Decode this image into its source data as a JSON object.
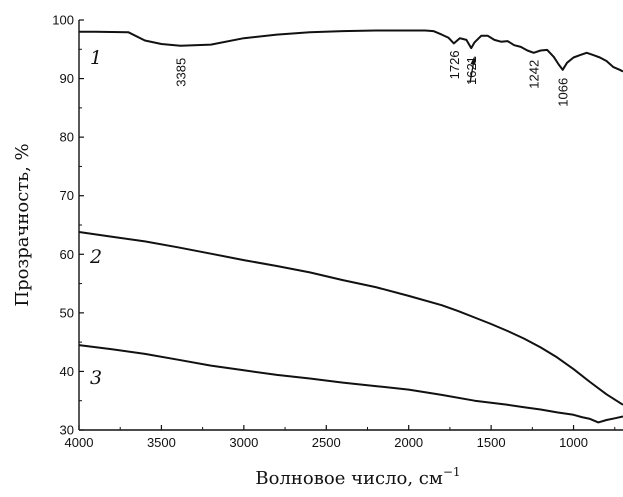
{
  "chart_data": {
    "type": "line",
    "title": "",
    "xlabel": "Волновое число, см",
    "xlabel_superscript": "−1",
    "ylabel": "Прозрачность, %",
    "xlim": [
      4000,
      700
    ],
    "ylim": [
      30,
      100
    ],
    "x_reversed": true,
    "grid": false,
    "xticks": [
      4000,
      3500,
      3000,
      2500,
      2000,
      1500,
      1000
    ],
    "yticks": [
      30,
      40,
      50,
      60,
      70,
      80,
      90,
      100
    ],
    "colors": {
      "line": "#111111"
    },
    "series": [
      {
        "name": "1",
        "x": [
          4000,
          3900,
          3700,
          3600,
          3500,
          3385,
          3200,
          3000,
          2800,
          2600,
          2400,
          2200,
          2000,
          1900,
          1850,
          1800,
          1760,
          1726,
          1690,
          1650,
          1621,
          1600,
          1560,
          1520,
          1480,
          1440,
          1400,
          1360,
          1320,
          1280,
          1242,
          1200,
          1160,
          1120,
          1090,
          1066,
          1040,
          1000,
          960,
          920,
          880,
          840,
          800,
          760,
          720,
          700
        ],
        "y": [
          98,
          98,
          97.9,
          96.5,
          95.9,
          95.6,
          95.8,
          96.9,
          97.5,
          97.9,
          98.1,
          98.2,
          98.2,
          98.2,
          98.1,
          97.5,
          97,
          96,
          96.9,
          96.6,
          95.2,
          96.2,
          97.3,
          97.3,
          96.6,
          96.3,
          96.4,
          95.7,
          95.4,
          94.8,
          94.4,
          94.8,
          94.9,
          93.7,
          92.4,
          91.5,
          92.7,
          93.6,
          94,
          94.4,
          94,
          93.6,
          93,
          92,
          91.5,
          91.2
        ]
      },
      {
        "name": "2",
        "x": [
          4000,
          3800,
          3600,
          3400,
          3200,
          3000,
          2800,
          2600,
          2400,
          2200,
          2000,
          1800,
          1700,
          1600,
          1500,
          1400,
          1300,
          1200,
          1100,
          1000,
          900,
          800,
          700
        ],
        "y": [
          63.8,
          63,
          62.2,
          61.2,
          60.1,
          59,
          58,
          56.9,
          55.6,
          54.4,
          52.9,
          51.3,
          50.3,
          49.2,
          48.1,
          46.9,
          45.6,
          44.1,
          42.4,
          40.4,
          38.2,
          36.1,
          34.3
        ]
      },
      {
        "name": "3",
        "x": [
          4000,
          3800,
          3600,
          3400,
          3200,
          3000,
          2800,
          2600,
          2400,
          2200,
          2000,
          1800,
          1600,
          1400,
          1300,
          1200,
          1100,
          1000,
          950,
          900,
          850,
          800,
          750,
          700
        ],
        "y": [
          44.5,
          43.8,
          43,
          42,
          41,
          40.2,
          39.4,
          38.8,
          38.1,
          37.5,
          36.9,
          36,
          35,
          34.3,
          33.9,
          33.5,
          33,
          32.6,
          32.2,
          31.9,
          31.3,
          31.7,
          32,
          32.3
        ]
      }
    ],
    "annotations": [
      {
        "text": "3385",
        "x": 3385,
        "y": 95.6
      },
      {
        "text": "1726",
        "x": 1726,
        "y": 96
      },
      {
        "text": "1621",
        "x": 1621,
        "y": 95.2
      },
      {
        "text": "1242",
        "x": 1242,
        "y": 94.4
      },
      {
        "text": "1066",
        "x": 1066,
        "y": 91.5
      }
    ]
  }
}
